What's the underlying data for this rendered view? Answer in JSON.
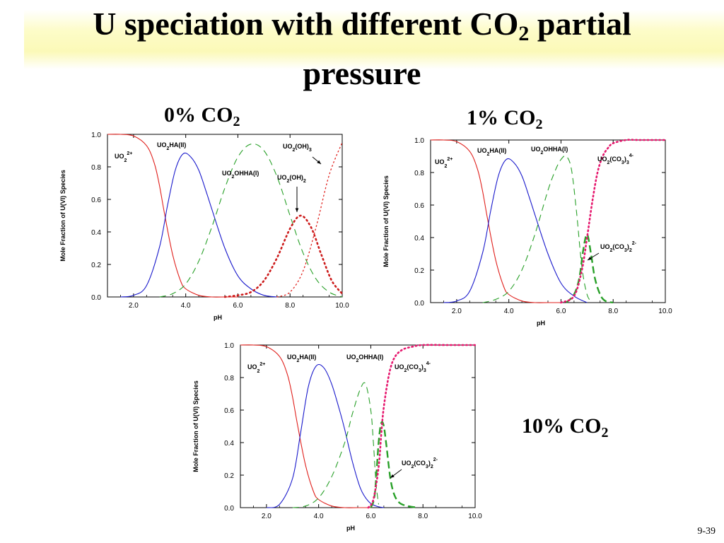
{
  "slide": {
    "title_line1": "U speciation with different CO",
    "title_sub": "2",
    "title_line1_end": " partial",
    "title_line2": "pressure",
    "page_number": "9-39"
  },
  "chart_data": [
    {
      "type": "line",
      "label_main": "0% CO",
      "label_sub": "2",
      "xlabel": "pH",
      "ylabel": "Mole Fraction of U(VI) Species",
      "xlim": [
        1.0,
        10.0
      ],
      "ylim": [
        0.0,
        1.0
      ],
      "xticks": [
        "2.0",
        "4.0",
        "6.0",
        "8.0",
        "10.0"
      ],
      "yticks": [
        "0.0",
        "0.2",
        "0.4",
        "0.6",
        "0.8",
        "1.0"
      ],
      "series": [
        {
          "name": "UO2 2+",
          "color": "#e0201c",
          "style": "solid",
          "x": [
            1.0,
            1.5,
            2.0,
            2.5,
            2.8,
            3.0,
            3.2,
            3.5,
            3.8,
            4.0,
            4.5,
            5.0,
            5.5,
            6.0
          ],
          "y": [
            1.0,
            1.0,
            0.99,
            0.93,
            0.82,
            0.68,
            0.5,
            0.26,
            0.1,
            0.05,
            0.01,
            0.0,
            0.0,
            0.0
          ]
        },
        {
          "name": "UO2HA(II)",
          "color": "#1a1acc",
          "style": "solid",
          "x": [
            1.5,
            2.0,
            2.5,
            3.0,
            3.3,
            3.6,
            3.9,
            4.2,
            4.5,
            4.8,
            5.0,
            5.5,
            6.0,
            6.5,
            7.0,
            7.5
          ],
          "y": [
            0.0,
            0.01,
            0.07,
            0.31,
            0.56,
            0.78,
            0.88,
            0.86,
            0.78,
            0.64,
            0.54,
            0.3,
            0.13,
            0.05,
            0.01,
            0.0
          ]
        },
        {
          "name": "UO2OHHA(I)",
          "color": "#28a028",
          "style": "dashed",
          "x": [
            3.0,
            3.5,
            4.0,
            4.5,
            5.0,
            5.5,
            6.0,
            6.5,
            7.0,
            7.5,
            8.0,
            8.5,
            9.0,
            9.5,
            10.0
          ],
          "y": [
            0.0,
            0.02,
            0.08,
            0.22,
            0.43,
            0.67,
            0.86,
            0.94,
            0.9,
            0.74,
            0.5,
            0.27,
            0.11,
            0.03,
            0.0
          ]
        },
        {
          "name": "UO2(OH)2",
          "color": "#cc1a1a",
          "style": "dotted-heavy",
          "x": [
            5.5,
            6.0,
            6.5,
            7.0,
            7.5,
            8.0,
            8.4,
            8.8,
            9.2,
            9.6,
            10.0
          ],
          "y": [
            0.0,
            0.01,
            0.03,
            0.1,
            0.24,
            0.42,
            0.5,
            0.43,
            0.26,
            0.1,
            0.02
          ]
        },
        {
          "name": "UO2(OH)3",
          "color": "#e0201c",
          "style": "dotted-light",
          "x": [
            7.5,
            8.0,
            8.5,
            9.0,
            9.5,
            10.0
          ],
          "y": [
            0.0,
            0.03,
            0.16,
            0.43,
            0.75,
            0.95
          ]
        }
      ],
      "labels": [
        {
          "text": "UO",
          "sub": "2",
          "sup": "2+"
        },
        {
          "text": "UO",
          "sub": "2",
          "tail": "HA(II)"
        },
        {
          "text": "UO",
          "sub": "2",
          "tail": "OHHA(I)"
        },
        {
          "text": "UO",
          "sub": "2",
          "tail": "(OH)",
          "sub2": "2"
        },
        {
          "text": "UO",
          "sub": "2",
          "tail": "(OH)",
          "sub2": "3"
        }
      ]
    },
    {
      "type": "line",
      "label_main": "1% CO",
      "label_sub": "2",
      "xlabel": "pH",
      "ylabel": "Mole Fraction of U(VI) Species",
      "xlim": [
        1.0,
        10.0
      ],
      "ylim": [
        0.0,
        1.0
      ],
      "xticks": [
        "2.0",
        "4.0",
        "6.0",
        "8.0",
        "10.0"
      ],
      "yticks": [
        "0.0",
        "0.2",
        "0.4",
        "0.6",
        "0.8",
        "1.0"
      ],
      "series": [
        {
          "name": "UO2 2+",
          "color": "#e0201c",
          "style": "solid",
          "x": [
            1.0,
            1.5,
            2.0,
            2.5,
            2.8,
            3.0,
            3.2,
            3.5,
            3.8,
            4.0,
            4.5,
            5.0,
            5.5,
            6.0
          ],
          "y": [
            1.0,
            1.0,
            0.99,
            0.93,
            0.82,
            0.68,
            0.5,
            0.26,
            0.1,
            0.05,
            0.01,
            0.0,
            0.0,
            0.0
          ]
        },
        {
          "name": "UO2HA(II)",
          "color": "#1a1acc",
          "style": "solid",
          "x": [
            1.5,
            2.0,
            2.5,
            3.0,
            3.3,
            3.6,
            3.9,
            4.2,
            4.5,
            4.8,
            5.0,
            5.5,
            6.0,
            6.5,
            7.0
          ],
          "y": [
            0.0,
            0.01,
            0.07,
            0.31,
            0.56,
            0.78,
            0.88,
            0.86,
            0.78,
            0.64,
            0.54,
            0.3,
            0.12,
            0.04,
            0.0
          ]
        },
        {
          "name": "UO2OHHA(I)",
          "color": "#28a028",
          "style": "dashed",
          "x": [
            3.0,
            3.5,
            4.0,
            4.5,
            5.0,
            5.5,
            5.8,
            6.0,
            6.2,
            6.4,
            6.6,
            6.8,
            7.0,
            7.2
          ],
          "y": [
            0.0,
            0.02,
            0.07,
            0.2,
            0.42,
            0.69,
            0.82,
            0.88,
            0.9,
            0.82,
            0.55,
            0.22,
            0.05,
            0.0
          ]
        },
        {
          "name": "UO2(CO3)2 2-",
          "color": "#28a028",
          "style": "dashed-heavy",
          "x": [
            6.2,
            6.5,
            6.7,
            6.85,
            7.0,
            7.15,
            7.3,
            7.5,
            7.7,
            8.0
          ],
          "y": [
            0.0,
            0.05,
            0.15,
            0.32,
            0.42,
            0.3,
            0.15,
            0.05,
            0.01,
            0.0
          ]
        },
        {
          "name": "UO2(CO3)3 4-",
          "color": "#e6186e",
          "style": "dotted-pink",
          "x": [
            6.0,
            6.5,
            6.8,
            7.0,
            7.2,
            7.4,
            7.6,
            7.8,
            8.0,
            8.5,
            9.0,
            10.0
          ],
          "y": [
            0.0,
            0.04,
            0.2,
            0.4,
            0.62,
            0.8,
            0.9,
            0.95,
            0.98,
            1.0,
            1.0,
            1.0
          ]
        }
      ],
      "labels": [
        {
          "text": "UO",
          "sub": "2",
          "sup": "2+"
        },
        {
          "text": "UO",
          "sub": "2",
          "tail": "HA(II)"
        },
        {
          "text": "UO",
          "sub": "2",
          "tail": "OHHA(I)"
        },
        {
          "text": "UO",
          "sub": "2",
          "tail": "(CO",
          "sub2": "3",
          "tail2": ")",
          "sub3": "3",
          "sup": "4-"
        },
        {
          "text": "UO",
          "sub": "2",
          "tail": "(CO",
          "sub2": "3",
          "tail2": ")",
          "sub3": "2",
          "sup": "2-"
        }
      ]
    },
    {
      "type": "line",
      "label_main": "10% CO",
      "label_sub": "2",
      "xlabel": "pH",
      "ylabel": "Mole Fraction of U(VI) Species",
      "xlim": [
        1.0,
        10.0
      ],
      "ylim": [
        0.0,
        1.0
      ],
      "xticks": [
        "2.0",
        "4.0",
        "6.0",
        "8.0",
        "10.0"
      ],
      "yticks": [
        "0.0",
        "0.2",
        "0.4",
        "0.6",
        "0.8",
        "1.0"
      ],
      "series": [
        {
          "name": "UO2 2+",
          "color": "#e0201c",
          "style": "solid",
          "x": [
            1.0,
            1.5,
            2.0,
            2.5,
            2.8,
            3.0,
            3.2,
            3.5,
            3.8,
            4.0,
            4.5,
            5.0,
            5.5,
            6.0
          ],
          "y": [
            1.0,
            1.0,
            0.99,
            0.93,
            0.82,
            0.68,
            0.5,
            0.26,
            0.1,
            0.05,
            0.01,
            0.0,
            0.0,
            0.0
          ]
        },
        {
          "name": "UO2HA(II)",
          "color": "#1a1acc",
          "style": "solid",
          "x": [
            2.0,
            2.5,
            3.0,
            3.3,
            3.6,
            3.9,
            4.2,
            4.5,
            4.8,
            5.0,
            5.3,
            5.6,
            5.9,
            6.2,
            6.5
          ],
          "y": [
            0.0,
            0.02,
            0.18,
            0.45,
            0.74,
            0.87,
            0.86,
            0.76,
            0.6,
            0.48,
            0.28,
            0.12,
            0.04,
            0.01,
            0.0
          ]
        },
        {
          "name": "UO2OHHA(I)",
          "color": "#28a028",
          "style": "dashed",
          "x": [
            3.0,
            3.5,
            4.0,
            4.5,
            5.0,
            5.3,
            5.6,
            5.8,
            6.0,
            6.1,
            6.2,
            6.3
          ],
          "y": [
            0.0,
            0.01,
            0.06,
            0.19,
            0.4,
            0.58,
            0.73,
            0.76,
            0.6,
            0.4,
            0.15,
            0.02
          ]
        },
        {
          "name": "UO2(CO3)2 2-",
          "color": "#28a028",
          "style": "dashed-heavy",
          "x": [
            6.0,
            6.15,
            6.3,
            6.4,
            6.5,
            6.6,
            6.75,
            6.9,
            7.1,
            7.4,
            7.8
          ],
          "y": [
            0.0,
            0.08,
            0.4,
            0.52,
            0.5,
            0.38,
            0.18,
            0.08,
            0.03,
            0.01,
            0.0
          ]
        },
        {
          "name": "UO2(CO3)3 4-",
          "color": "#e6186e",
          "style": "dotted-pink",
          "x": [
            5.9,
            6.1,
            6.3,
            6.4,
            6.5,
            6.7,
            6.9,
            7.2,
            7.6,
            8.0,
            9.0,
            10.0
          ],
          "y": [
            0.0,
            0.05,
            0.25,
            0.45,
            0.62,
            0.82,
            0.92,
            0.97,
            0.99,
            1.0,
            1.0,
            1.0
          ]
        }
      ],
      "labels": [
        {
          "text": "UO",
          "sub": "2",
          "sup": "2+"
        },
        {
          "text": "UO",
          "sub": "2",
          "tail": "HA(II)"
        },
        {
          "text": "UO",
          "sub": "2",
          "tail": "OHHA(I)"
        },
        {
          "text": "UO",
          "sub": "2",
          "tail": "(CO",
          "sub2": "3",
          "tail2": ")",
          "sub3": "3",
          "sup": "4-"
        },
        {
          "text": "UO",
          "sub": "2",
          "tail": "(CO",
          "sub2": "3",
          "tail2": ")",
          "sub3": "2",
          "sup": "2-"
        }
      ]
    }
  ]
}
